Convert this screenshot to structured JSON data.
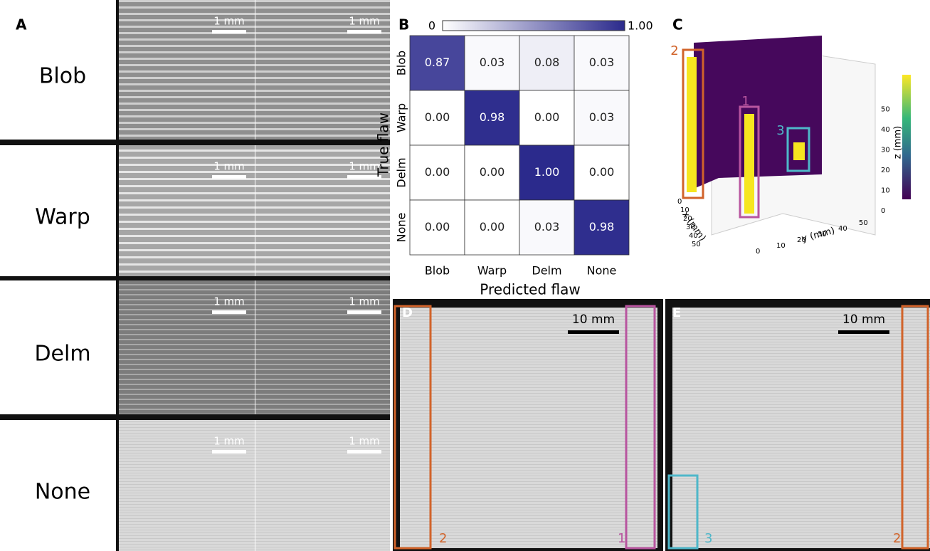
{
  "panel_a": {
    "label": "A",
    "rows": [
      "Blob",
      "Warp",
      "Delm",
      "None"
    ],
    "scale_label": "1 mm"
  },
  "chart_data": {
    "type": "heatmap",
    "label": "B",
    "x_label": "Predicted flaw",
    "y_label": "True flaw",
    "categories": [
      "Blob",
      "Warp",
      "Delm",
      "None"
    ],
    "y_categories": [
      "Blob",
      "Warp",
      "Delm",
      "None"
    ],
    "values": [
      [
        0.87,
        0.03,
        0.08,
        0.03
      ],
      [
        0,
        0.98,
        0,
        0.03
      ],
      [
        0,
        0,
        1,
        0
      ],
      [
        0,
        0,
        0.03,
        0.98
      ]
    ],
    "value_labels": [
      [
        "0.87",
        "0.03",
        "0.08",
        "0.03"
      ],
      [
        "0.00",
        "0.98",
        "0.00",
        "0.03"
      ],
      [
        "0.00",
        "0.00",
        "1.00",
        "0.00"
      ],
      [
        "0.00",
        "0.00",
        "0.03",
        "0.98"
      ]
    ],
    "colorbar_ticks": [
      0,
      {
        "value": 1,
        "label": "1.00"
      }
    ],
    "color_low": "#ffffff",
    "color_high": "#2b2a8c"
  },
  "panel_c": {
    "label": "C",
    "x_label": "x (mm)",
    "y_label": "y (mm)",
    "z_label": "z (mm)",
    "xticks": [
      0,
      10,
      20,
      30,
      40,
      50
    ],
    "yticks": [
      0,
      10,
      20,
      30,
      40,
      50
    ],
    "zticks": [
      0,
      10,
      20,
      30,
      40,
      50
    ],
    "boxes": [
      "1",
      "2",
      "3"
    ]
  },
  "panel_d": {
    "label": "D",
    "scale_label": "10 mm",
    "boxes": [
      "2",
      "1"
    ]
  },
  "panel_e": {
    "label": "E",
    "scale_label": "10 mm",
    "boxes": [
      "3",
      "2"
    ]
  }
}
